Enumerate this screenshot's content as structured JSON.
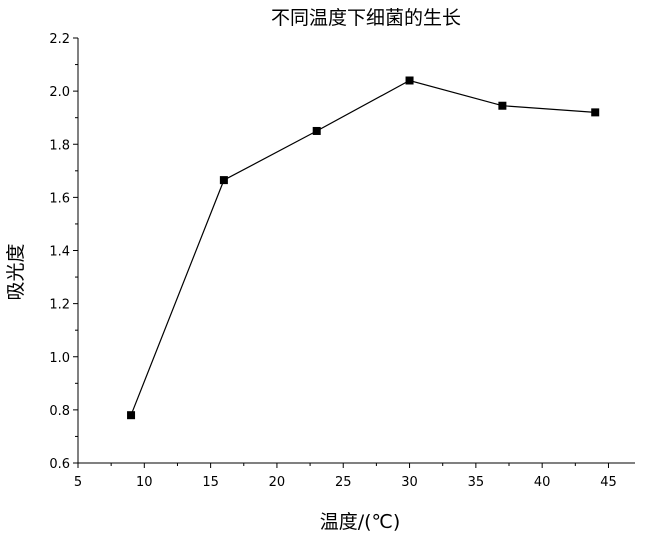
{
  "chart_data": {
    "type": "line",
    "title": "不同温度下细菌的生长",
    "xlabel": "温度/(℃)",
    "ylabel": "吸光度",
    "xlim": [
      5,
      47
    ],
    "ylim": [
      0.6,
      2.2
    ],
    "xticks": [
      5,
      10,
      15,
      20,
      25,
      30,
      35,
      40,
      45
    ],
    "yticks": [
      0.6,
      0.8,
      1.0,
      1.2,
      1.4,
      1.6,
      1.8,
      2.0,
      2.2
    ],
    "xtick_labels": [
      "5",
      "10",
      "15",
      "20",
      "25",
      "30",
      "35",
      "40",
      "45"
    ],
    "ytick_labels": [
      "0.6",
      "0.8",
      "1.0",
      "1.2",
      "1.4",
      "1.6",
      "1.8",
      "2.0",
      "2.2"
    ],
    "grid": false,
    "marker": "square",
    "series": [
      {
        "x": [
          9,
          16,
          23,
          30,
          37,
          44
        ],
        "values": [
          0.78,
          1.665,
          1.85,
          2.04,
          1.945,
          1.92
        ],
        "color": "#000000"
      }
    ]
  }
}
